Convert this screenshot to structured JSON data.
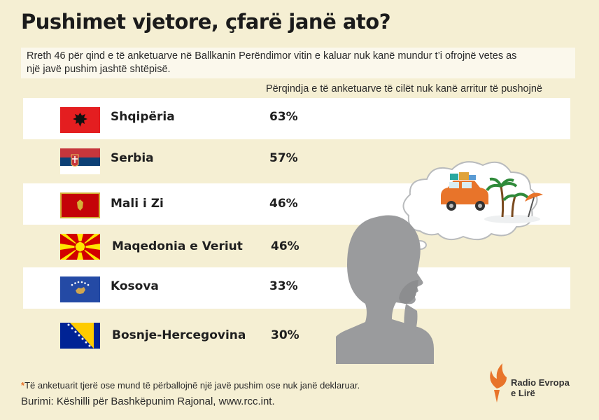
{
  "title": "Pushimet vjetore, çfarë janë ato?",
  "subtitle_line1": "Rreth 46 për qind e të anketuarve në Ballkanin Perëndimor vitin e kaluar nuk kanë mundur t’i ofrojnë vetes as",
  "subtitle_line2": "një javë pushim jashtë shtëpisë.",
  "column_header": "Përqindja e të anketuarve të cilët nuk kanë arritur të pushojnë",
  "chart_data": {
    "type": "table",
    "rows": [
      {
        "country": "Shqipëria",
        "percent": "63%",
        "value": 63,
        "flag_icon": "albania-flag-icon"
      },
      {
        "country": "Serbia",
        "percent": "57%",
        "value": 57,
        "flag_icon": "serbia-flag-icon"
      },
      {
        "country": "Mali i Zi",
        "percent": "46%",
        "value": 46,
        "flag_icon": "montenegro-flag-icon"
      },
      {
        "country": "Maqedonia e Veriut",
        "percent": "46%",
        "value": 46,
        "flag_icon": "north-macedonia-flag-icon"
      },
      {
        "country": "Kosova",
        "percent": "33%",
        "value": 33,
        "flag_icon": "kosovo-flag-icon"
      },
      {
        "country": "Bosnje-Hercegovina",
        "percent": "30%",
        "value": 30,
        "flag_icon": "bosnia-flag-icon"
      }
    ]
  },
  "footnote_star": "*",
  "footnote": "Të anketuarit tjerë ose mund të përballojnë një javë pushim ose nuk janë deklaruar.",
  "source": "Burimi: Këshilli për Bashkëpunim Rajonal, www.rcc.int.",
  "logo": {
    "line1": "Radio Evropa",
    "line2": "e Lirë",
    "icon": "rferl-torch-icon"
  },
  "colors": {
    "background": "#f5efd3",
    "row_light": "#ffffff",
    "silhouette": "#9a9b9d",
    "accent_orange": "#e8742a"
  }
}
